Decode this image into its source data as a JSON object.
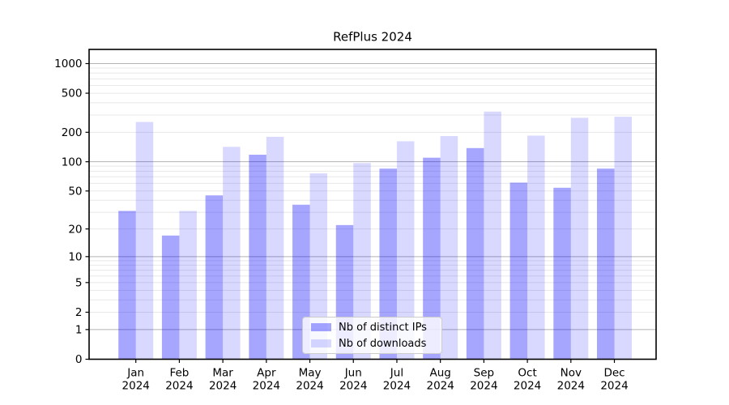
{
  "figure": {
    "background": "#ffffff"
  },
  "chart_data": {
    "type": "bar",
    "title": "RefPlus 2024",
    "categories": [
      "Jan 2024",
      "Feb 2024",
      "Mar 2024",
      "Apr 2024",
      "May 2024",
      "Jun 2024",
      "Jul 2024",
      "Aug 2024",
      "Sep 2024",
      "Oct 2024",
      "Nov 2024",
      "Dec 2024"
    ],
    "series": [
      {
        "name": "Nb of distinct IPs",
        "color": "#0000ff",
        "alpha": 0.35,
        "values": [
          31,
          17,
          45,
          118,
          36,
          22,
          85,
          110,
          138,
          61,
          54,
          85
        ]
      },
      {
        "name": "Nb of downloads",
        "color": "#0000ff",
        "alpha": 0.15,
        "values": [
          255,
          31,
          142,
          180,
          76,
          97,
          162,
          183,
          325,
          185,
          281,
          288
        ]
      }
    ],
    "xlabel": "",
    "ylabel": "",
    "y_scale": "log1p",
    "ylim": [
      0,
      1393
    ],
    "y_ticks": [
      0,
      1,
      2,
      5,
      10,
      20,
      50,
      100,
      200,
      500,
      1000
    ],
    "legend_position": "lower center",
    "grid": {
      "major": [
        1,
        10,
        100,
        1000
      ],
      "minor": [
        2,
        3,
        4,
        5,
        6,
        7,
        8,
        9,
        20,
        30,
        40,
        50,
        60,
        70,
        80,
        90,
        200,
        300,
        400,
        500,
        600,
        700,
        800,
        900
      ],
      "major_color": "#b2b2b2",
      "minor_color": "#e8e8e8"
    }
  }
}
